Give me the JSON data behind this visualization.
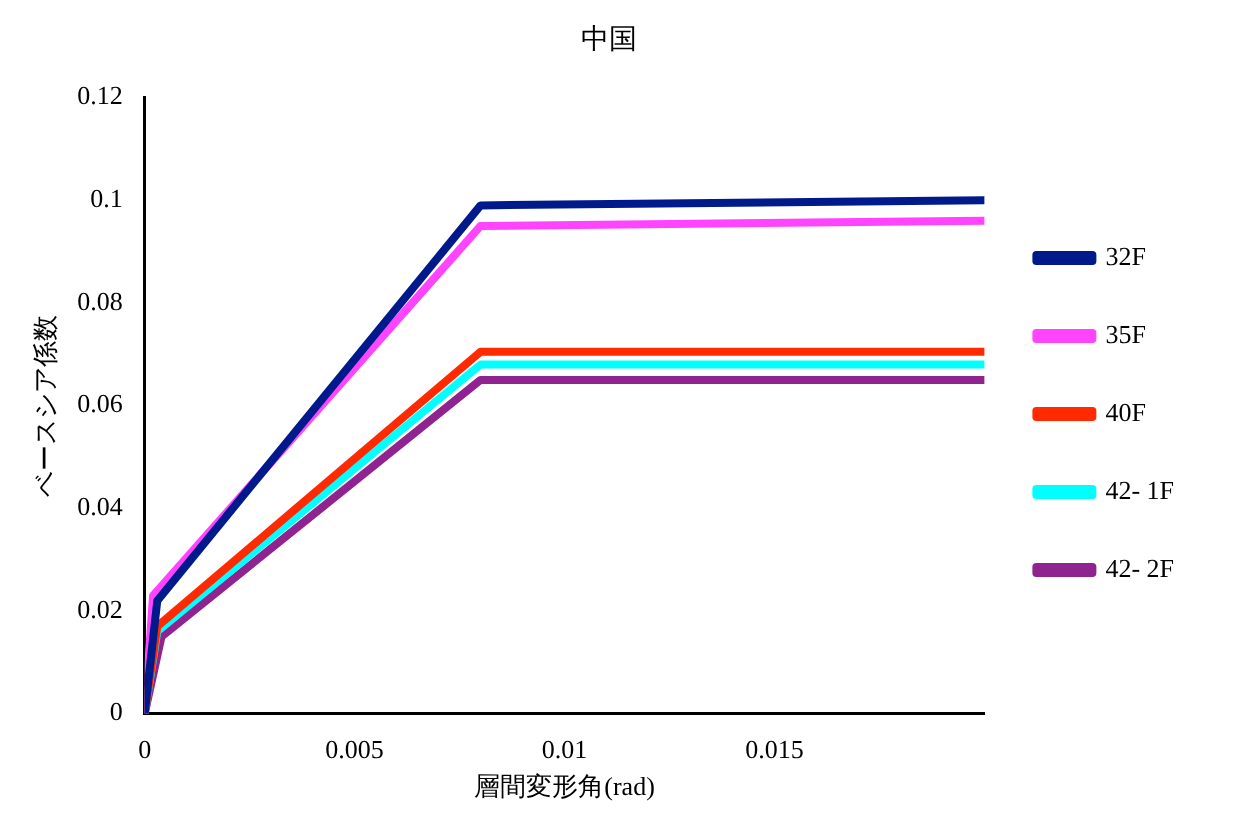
{
  "chart_data": {
    "type": "line",
    "title": "中国",
    "xlabel": "層間変形角(rad)",
    "ylabel": "ベースシア係数",
    "xlim": [
      0,
      0.02
    ],
    "xticks": [
      0,
      0.005,
      0.01,
      0.015
    ],
    "ylim": [
      0,
      0.12
    ],
    "yticks": [
      0,
      0.02,
      0.04,
      0.06,
      0.08,
      0.1,
      0.12
    ],
    "grid": false,
    "legend": "right",
    "marker": "none",
    "line_style": "solid",
    "series": [
      {
        "name": "32F",
        "color": "#001a8c",
        "x": [
          0,
          0.0003,
          0.008,
          0.02
        ],
        "values": [
          0,
          0.022,
          0.099,
          0.1
        ]
      },
      {
        "name": "35F",
        "color": "#ff44ff",
        "x": [
          0,
          0.0002,
          0.008,
          0.02
        ],
        "values": [
          0,
          0.023,
          0.095,
          0.096
        ]
      },
      {
        "name": "40F",
        "color": "#ff2a00",
        "x": [
          0,
          0.0003,
          0.008,
          0.02
        ],
        "values": [
          0,
          0.017,
          0.0705,
          0.0705
        ]
      },
      {
        "name": "42- 1F",
        "color": "#00ffff",
        "x": [
          0,
          0.0003,
          0.008,
          0.02
        ],
        "values": [
          0,
          0.016,
          0.068,
          0.068
        ]
      },
      {
        "name": "42- 2F",
        "color": "#8f2490",
        "x": [
          0,
          0.0004,
          0.008,
          0.02
        ],
        "values": [
          0,
          0.015,
          0.065,
          0.065
        ]
      }
    ]
  }
}
